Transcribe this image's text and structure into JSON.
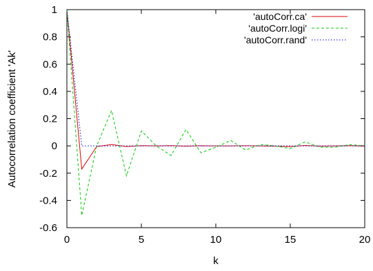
{
  "chart_data": {
    "type": "line",
    "title": "",
    "xlabel": "k",
    "ylabel": "Autocorrelation coefficient 'Ak'",
    "xlim": [
      0,
      20
    ],
    "ylim": [
      -0.6,
      1
    ],
    "x_ticks": [
      0,
      5,
      10,
      15,
      20
    ],
    "y_ticks": [
      -0.6,
      -0.4,
      -0.2,
      0,
      0.2,
      0.4,
      0.6,
      0.8,
      1
    ],
    "x_tick_labels": [
      "0",
      "5",
      "10",
      "15",
      "20"
    ],
    "y_tick_labels": [
      "-0.6",
      "-0.4",
      "-0.2",
      "0",
      "0.2",
      "0.4",
      "0.6",
      "0.8",
      "1"
    ],
    "grid": false,
    "legend_position": "top-right",
    "x": [
      0,
      1,
      2,
      3,
      4,
      5,
      6,
      7,
      8,
      9,
      10,
      11,
      12,
      13,
      14,
      15,
      16,
      17,
      18,
      19,
      20
    ],
    "series": [
      {
        "name": "'autoCorr.ca'",
        "color": "#e00000",
        "dash": "solid",
        "values": [
          1,
          -0.17,
          -0.005,
          0.01,
          -0.005,
          0.002,
          0.0,
          0.002,
          -0.002,
          0.001,
          0.0,
          0.0,
          0.001,
          0.0,
          -0.002,
          -0.005,
          0.003,
          -0.002,
          0.0,
          0.002,
          -0.002
        ]
      },
      {
        "name": "'autoCorr.logi'",
        "color": "#00cc00",
        "dash": "dashed",
        "values": [
          1,
          -0.51,
          0.0,
          0.26,
          -0.22,
          0.11,
          0.0,
          -0.07,
          0.12,
          -0.05,
          -0.01,
          0.04,
          -0.03,
          0.01,
          0.0,
          -0.02,
          0.03,
          -0.01,
          -0.01,
          0.01,
          0.0
        ]
      },
      {
        "name": "'autoCorr.rand'",
        "color": "#0000cc",
        "dash": "dotted",
        "values": [
          1,
          0.0,
          0.0,
          0.0,
          0.0,
          0.0,
          0.0,
          0.0,
          0.0,
          0.0,
          0.0,
          0.0,
          0.0,
          0.0,
          0.0,
          0.0,
          0.0,
          0.0,
          0.0,
          0.0,
          0.0
        ]
      }
    ]
  }
}
